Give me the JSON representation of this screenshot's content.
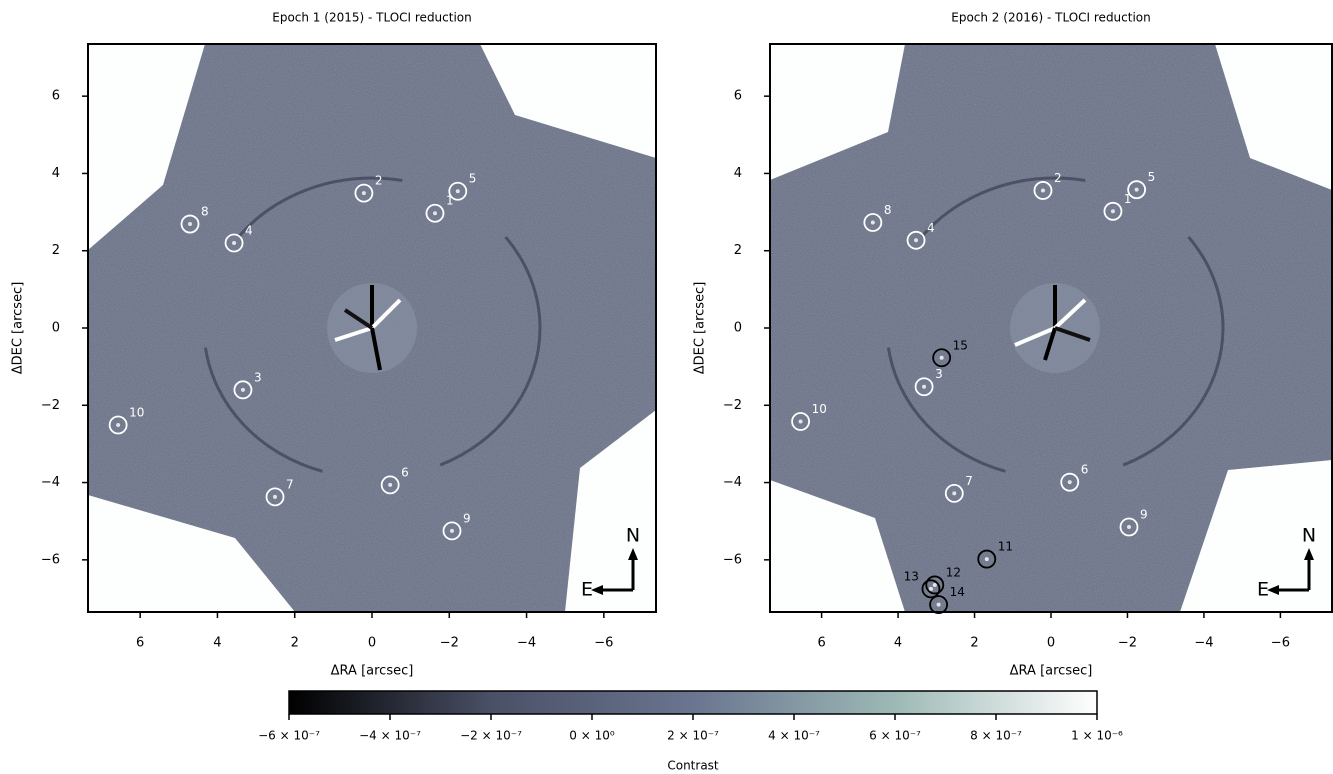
{
  "chart_data": [
    {
      "type": "scatter",
      "title": "Epoch 1 (2015) - TLOCI reduction",
      "xlabel": "ΔRA [arcsec]",
      "ylabel": "ΔDEC [arcsec]",
      "xlim": [
        7.35,
        -7.35
      ],
      "ylim": [
        -7.35,
        7.35
      ],
      "xticks": [
        6,
        4,
        2,
        0,
        {
          "value": -2,
          "label": "−2"
        },
        {
          "value": -4,
          "label": "−4"
        },
        {
          "value": -6,
          "label": "−6"
        }
      ],
      "yticks": [
        {
          "value": -6,
          "label": "−6"
        },
        {
          "value": -4,
          "label": "−4"
        },
        {
          "value": -2,
          "label": "−2"
        },
        0,
        2,
        4,
        6
      ],
      "point_labels": [
        "1",
        "2",
        "3",
        "4",
        "5",
        "6",
        "7",
        "8",
        "9",
        "10"
      ],
      "x": [
        -1.63,
        0.21,
        3.34,
        3.57,
        -2.22,
        -0.47,
        2.51,
        4.71,
        -2.07,
        6.57
      ],
      "values": [
        2.97,
        3.49,
        -1.6,
        2.2,
        3.54,
        -4.06,
        -4.37,
        2.69,
        -5.25,
        -2.51
      ],
      "colors": [
        "#ffffff",
        "#ffffff",
        "#ffffff",
        "#ffffff",
        "#ffffff",
        "#ffffff",
        "#ffffff",
        "#ffffff",
        "#ffffff",
        "#ffffff"
      ],
      "compass": {
        "north": "N",
        "east": "E"
      }
    },
    {
      "type": "scatter",
      "title": "Epoch 2 (2016) - TLOCI reduction",
      "xlabel": "ΔRA [arcsec]",
      "ylabel": "ΔDEC [arcsec]",
      "xlim": [
        7.35,
        -7.35
      ],
      "ylim": [
        -7.35,
        7.35
      ],
      "xticks": [
        6,
        4,
        2,
        0,
        {
          "value": -2,
          "label": "−2"
        },
        {
          "value": -4,
          "label": "−4"
        },
        {
          "value": -6,
          "label": "−6"
        }
      ],
      "yticks": [
        {
          "value": -6,
          "label": "−6"
        },
        {
          "value": -4,
          "label": "−4"
        },
        {
          "value": -2,
          "label": "−2"
        },
        0,
        2,
        4,
        6
      ],
      "point_labels": [
        "1",
        "2",
        "3",
        "4",
        "5",
        "6",
        "7",
        "8",
        "9",
        "10",
        "11",
        "12",
        "13",
        "14",
        "15"
      ],
      "x": [
        -1.62,
        0.21,
        3.32,
        3.53,
        -2.24,
        -0.49,
        2.53,
        4.66,
        -2.04,
        6.55,
        1.68,
        3.04,
        3.14,
        2.94,
        2.86
      ],
      "values": [
        3.02,
        3.56,
        -1.52,
        2.27,
        3.58,
        -3.99,
        -4.28,
        2.73,
        -5.15,
        -2.42,
        -5.98,
        -6.65,
        -6.75,
        -7.16,
        -0.77
      ],
      "colors": [
        "#ffffff",
        "#ffffff",
        "#ffffff",
        "#ffffff",
        "#ffffff",
        "#ffffff",
        "#ffffff",
        "#ffffff",
        "#ffffff",
        "#ffffff",
        "#000000",
        "#000000",
        "#000000",
        "#000000",
        "#000000"
      ],
      "compass": {
        "north": "N",
        "east": "E"
      }
    },
    {
      "type": "colorbar",
      "xlabel": "Contrast",
      "xlim": [
        -6e-07,
        1e-06
      ],
      "colormap": [
        "#000000",
        "#4a5066",
        "#6a7590",
        "#9db9b5",
        "#ffffff"
      ],
      "xticks": [
        {
          "value": -6e-07,
          "label": "−6 × 10⁻⁷"
        },
        {
          "value": -4e-07,
          "label": "−4 × 10⁻⁷"
        },
        {
          "value": -2e-07,
          "label": "−2 × 10⁻⁷"
        },
        {
          "value": 0,
          "label": "0 × 10⁰"
        },
        {
          "value": 2e-07,
          "label": "2 × 10⁻⁷"
        },
        {
          "value": 4e-07,
          "label": "4 × 10⁻⁷"
        },
        {
          "value": 6e-07,
          "label": "6 × 10⁻⁷"
        },
        {
          "value": 8e-07,
          "label": "8 × 10⁻⁷"
        },
        {
          "value": 1e-06,
          "label": "1 × 10⁻⁶"
        }
      ]
    }
  ]
}
